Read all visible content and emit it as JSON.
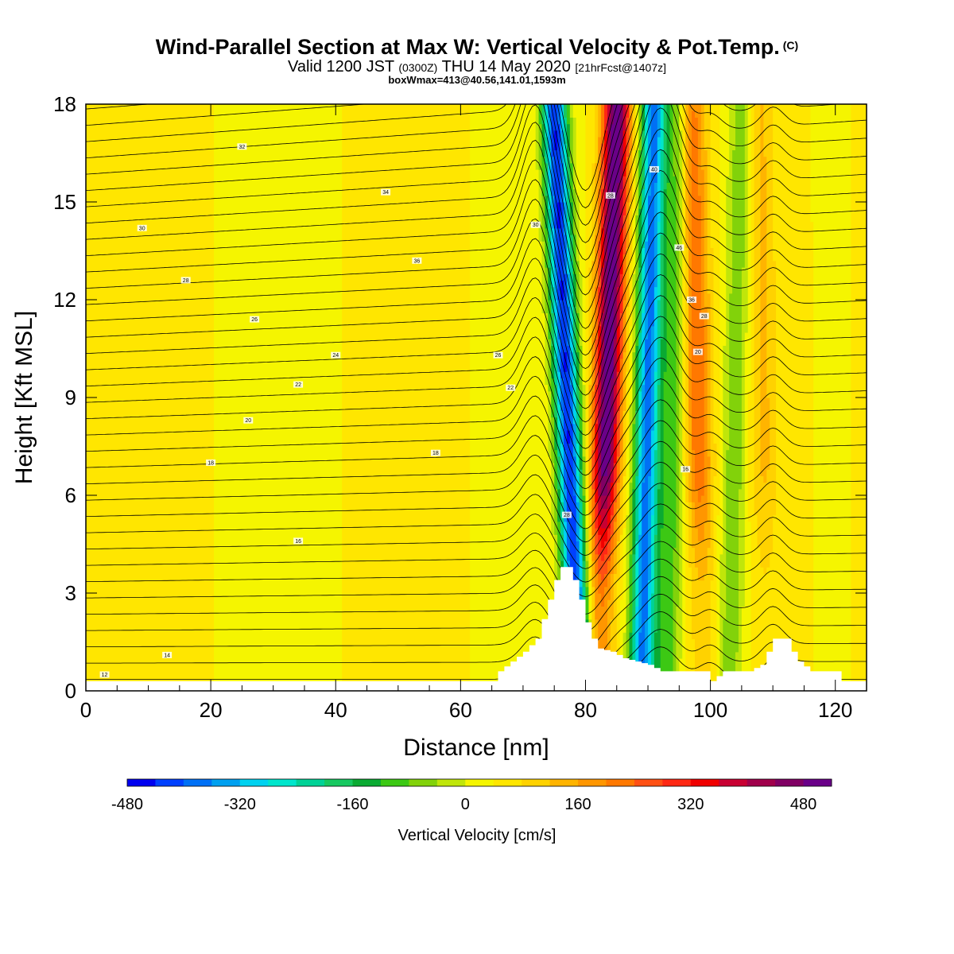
{
  "header": {
    "title": "Wind-Parallel Section at Max W: Vertical Velocity & Pot.Temp.",
    "copyright": "(C)",
    "valid_prefix": "Valid 1200 JST",
    "valid_utc": "(0300Z)",
    "valid_date": "THU 14 May 2020",
    "forecast_info": "[21hrFcst@1407z]",
    "box_info": "boxWmax=413@40.56,141.01,1593m"
  },
  "chart_data": {
    "type": "heatmap",
    "xlabel": "Distance [nm]",
    "ylabel": "Height [Kft MSL]",
    "xlim": [
      0,
      125
    ],
    "ylim": [
      0,
      18
    ],
    "xticks": [
      0,
      20,
      40,
      60,
      80,
      100,
      120
    ],
    "yticks": [
      0,
      3,
      6,
      9,
      12,
      15,
      18
    ],
    "colorbar": {
      "label": "Vertical Velocity [cm/s]",
      "ticks": [
        -480,
        -320,
        -160,
        0,
        160,
        320,
        480
      ],
      "colors": [
        "#0000f0",
        "#0040ff",
        "#0070f5",
        "#00a0f0",
        "#00d2f0",
        "#00e6cc",
        "#00d296",
        "#16c860",
        "#0aaa32",
        "#3cc814",
        "#82d20a",
        "#c0e60a",
        "#f5f500",
        "#ffe600",
        "#ffd200",
        "#ffb400",
        "#ff9600",
        "#ff7800",
        "#ff5014",
        "#ff2814",
        "#f00000",
        "#c80032",
        "#a0004b",
        "#800064",
        "#6a0088"
      ]
    },
    "terrain_kft": [
      [
        65,
        0.3
      ],
      [
        66,
        0.6
      ],
      [
        68,
        0.9
      ],
      [
        70,
        1.2
      ],
      [
        72,
        1.6
      ],
      [
        73,
        2.2
      ],
      [
        74,
        2.8
      ],
      [
        75,
        3.4
      ],
      [
        76,
        3.8
      ],
      [
        77,
        3.8
      ],
      [
        78,
        3.4
      ],
      [
        79,
        2.8
      ],
      [
        80,
        2.1
      ],
      [
        81,
        1.6
      ],
      [
        82,
        1.3
      ],
      [
        84,
        1.2
      ],
      [
        86,
        1.0
      ],
      [
        88,
        0.9
      ],
      [
        90,
        0.8
      ],
      [
        92,
        0.6
      ],
      [
        95,
        0.6
      ],
      [
        99,
        0.6
      ],
      [
        100,
        0.3
      ],
      [
        102,
        0.6
      ],
      [
        106,
        0.6
      ],
      [
        108,
        0.8
      ],
      [
        109,
        1.2
      ],
      [
        110,
        1.6
      ],
      [
        112,
        1.6
      ],
      [
        113,
        1.2
      ],
      [
        114,
        0.9
      ],
      [
        116,
        0.6
      ],
      [
        120,
        0.6
      ],
      [
        121,
        0.3
      ],
      [
        125,
        0.3
      ]
    ],
    "updraft_bands": [
      {
        "x_bottom": 82,
        "x_top": 85,
        "peak_cm_s": 480
      },
      {
        "x_bottom": 99,
        "x_top": 97,
        "peak_cm_s": 200
      },
      {
        "x_bottom": 109,
        "x_top": 108,
        "peak_cm_s": 90
      }
    ],
    "downdraft_bands": [
      {
        "x_bottom": 79,
        "x_top": 75,
        "peak_cm_s": -480
      },
      {
        "x_bottom": 89,
        "x_top": 91,
        "peak_cm_s": -420
      },
      {
        "x_bottom": 93,
        "x_top": 95,
        "peak_cm_s": -140
      },
      {
        "x_bottom": 103,
        "x_top": 105,
        "peak_cm_s": -110
      }
    ],
    "isentrope_labels": [
      {
        "text": "12",
        "x": 3,
        "y": 0.5
      },
      {
        "text": "14",
        "x": 13,
        "y": 1.1
      },
      {
        "text": "16",
        "x": 34,
        "y": 4.6
      },
      {
        "text": "18",
        "x": 20,
        "y": 7.0
      },
      {
        "text": "20",
        "x": 26,
        "y": 8.3
      },
      {
        "text": "22",
        "x": 34,
        "y": 9.4
      },
      {
        "text": "24",
        "x": 40,
        "y": 10.3
      },
      {
        "text": "26",
        "x": 27,
        "y": 11.4
      },
      {
        "text": "28",
        "x": 16,
        "y": 12.6
      },
      {
        "text": "30",
        "x": 9,
        "y": 14.2
      },
      {
        "text": "32",
        "x": 25,
        "y": 16.7
      },
      {
        "text": "34",
        "x": 48,
        "y": 15.3
      },
      {
        "text": "36",
        "x": 53,
        "y": 13.2
      },
      {
        "text": "18",
        "x": 56,
        "y": 7.3
      },
      {
        "text": "22",
        "x": 68,
        "y": 9.3
      },
      {
        "text": "26",
        "x": 66,
        "y": 10.3
      },
      {
        "text": "30",
        "x": 72,
        "y": 14.3
      },
      {
        "text": "28",
        "x": 77,
        "y": 5.4
      },
      {
        "text": "28",
        "x": 84,
        "y": 15.2
      },
      {
        "text": "40",
        "x": 91,
        "y": 16.0
      },
      {
        "text": "46",
        "x": 95,
        "y": 13.6
      },
      {
        "text": "36",
        "x": 97,
        "y": 12.0
      },
      {
        "text": "28",
        "x": 99,
        "y": 11.5
      },
      {
        "text": "20",
        "x": 98,
        "y": 10.4
      },
      {
        "text": "16",
        "x": 96,
        "y": 6.8
      }
    ]
  }
}
